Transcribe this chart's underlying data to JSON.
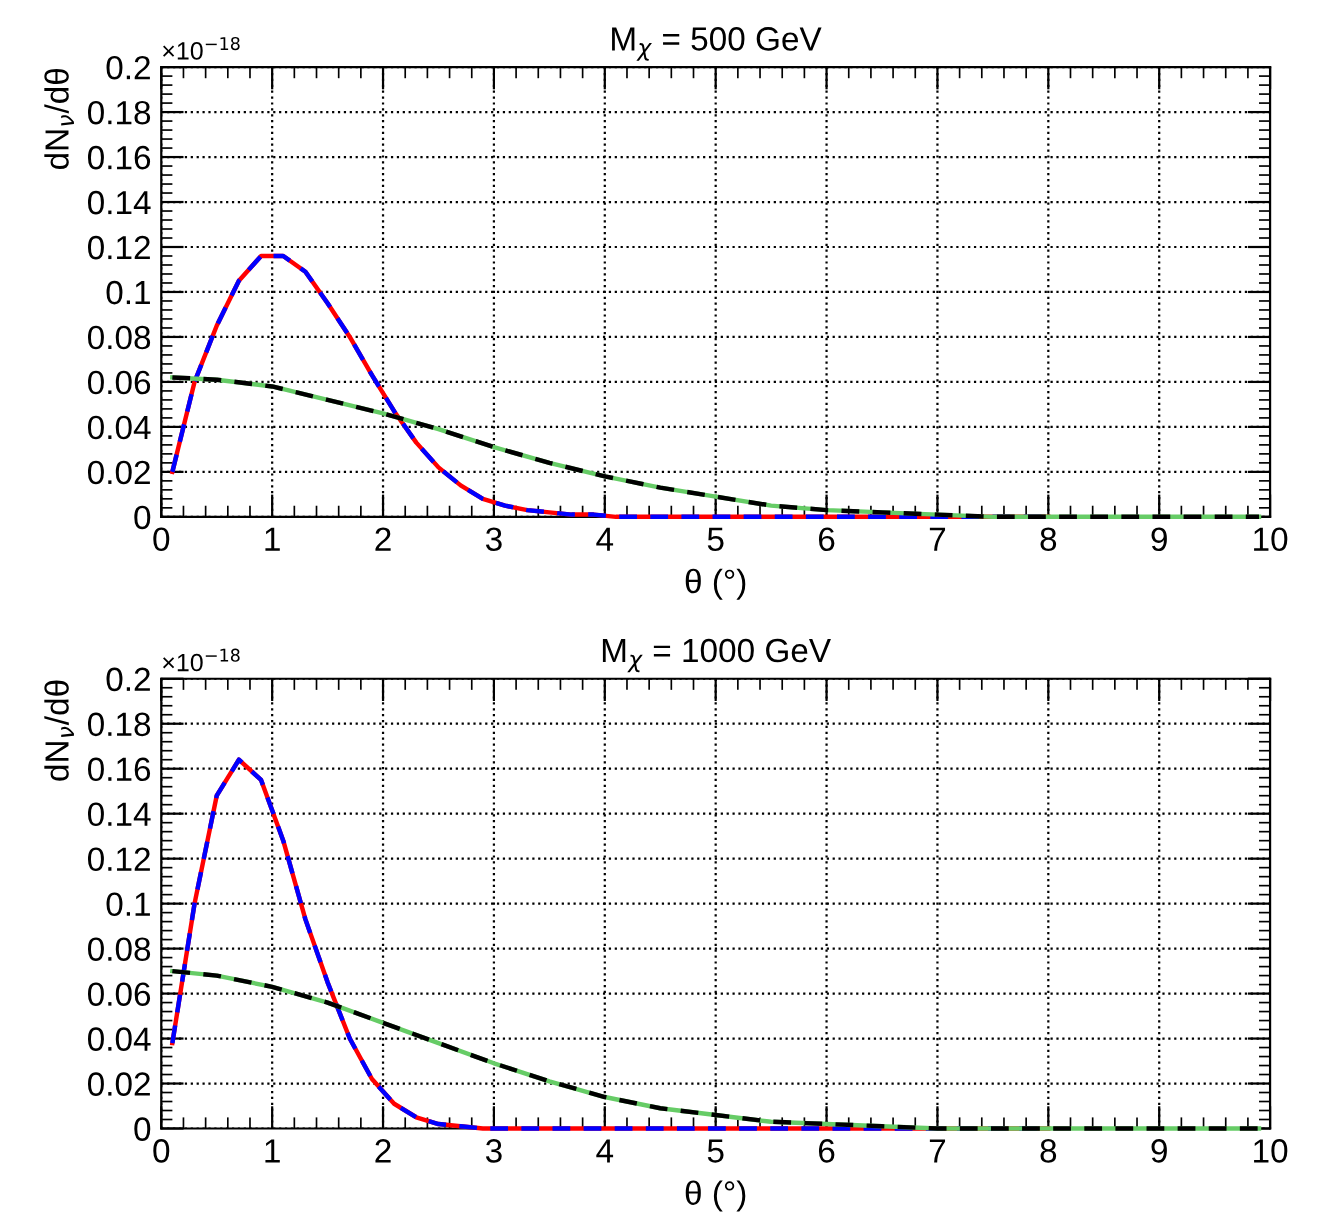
{
  "chart_data": [
    {
      "type": "line",
      "title": "M$_{χ}$ = 500 GeV",
      "xlabel": "θ (°)",
      "ylabel": "dN$_{ν}$/dθ",
      "annotations": [
        "×10$^{−18}$"
      ],
      "xlim": [
        0,
        10
      ],
      "ylim": [
        0,
        0.2
      ],
      "xticks": [
        0,
        1,
        2,
        3,
        4,
        5,
        6,
        7,
        8,
        9,
        10
      ],
      "yticks": [
        0,
        0.02,
        0.04,
        0.06,
        0.08,
        0.1,
        0.12,
        0.14,
        0.16,
        0.18,
        0.2
      ],
      "grid": true,
      "series": [
        {
          "color": "#ff0000",
          "line_style": "solid",
          "x": [
            0.1,
            0.3,
            0.5,
            0.7,
            0.9,
            1.1,
            1.3,
            1.5,
            1.7,
            1.9,
            2.1,
            2.3,
            2.5,
            2.7,
            2.9,
            3.1,
            3.3,
            3.5,
            3.7,
            3.9,
            4.1,
            5,
            6,
            7,
            8
          ],
          "values": [
            0.02,
            0.06,
            0.085,
            0.105,
            0.116,
            0.116,
            0.109,
            0.095,
            0.08,
            0.063,
            0.047,
            0.033,
            0.022,
            0.014,
            0.008,
            0.005,
            0.003,
            0.002,
            0.001,
            0.001,
            0,
            0,
            0,
            0,
            0
          ]
        },
        {
          "color": "#0000ff",
          "line_style": "dashed",
          "x": [
            0.1,
            0.3,
            0.5,
            0.7,
            0.9,
            1.1,
            1.3,
            1.5,
            1.7,
            1.9,
            2.1,
            2.3,
            2.5,
            2.7,
            2.9,
            3.1,
            3.3,
            3.5,
            3.7,
            3.9,
            4.1,
            5,
            6,
            7,
            8
          ],
          "values": [
            0.02,
            0.06,
            0.085,
            0.105,
            0.116,
            0.116,
            0.109,
            0.095,
            0.08,
            0.063,
            0.047,
            0.033,
            0.022,
            0.014,
            0.008,
            0.005,
            0.003,
            0.002,
            0.001,
            0.001,
            0,
            0,
            0,
            0,
            0
          ]
        },
        {
          "color": "#66cc66",
          "line_style": "solid",
          "x": [
            0.1,
            0.5,
            1,
            1.5,
            2,
            2.5,
            3,
            3.5,
            4,
            4.5,
            5,
            5.5,
            6,
            6.5,
            7,
            7.5,
            8,
            9,
            9.9
          ],
          "values": [
            0.062,
            0.061,
            0.058,
            0.052,
            0.046,
            0.039,
            0.031,
            0.024,
            0.018,
            0.013,
            0.009,
            0.005,
            0.003,
            0.002,
            0.001,
            0,
            0,
            0,
            0
          ]
        },
        {
          "color": "#000000",
          "line_style": "dashed",
          "x": [
            0.1,
            0.5,
            1,
            1.5,
            2,
            2.5,
            3,
            3.5,
            4,
            4.5,
            5,
            5.5,
            6,
            6.5,
            7,
            7.5,
            8,
            9,
            9.9
          ],
          "values": [
            0.062,
            0.061,
            0.058,
            0.052,
            0.046,
            0.039,
            0.031,
            0.024,
            0.018,
            0.013,
            0.009,
            0.005,
            0.003,
            0.002,
            0.001,
            0,
            0,
            0,
            0
          ]
        }
      ]
    },
    {
      "type": "line",
      "title": "M$_{χ}$ = 1000 GeV",
      "xlabel": "θ (°)",
      "ylabel": "dN$_{ν}$/dθ",
      "annotations": [
        "×10$^{−18}$"
      ],
      "xlim": [
        0,
        10
      ],
      "ylim": [
        0,
        0.2
      ],
      "xticks": [
        0,
        1,
        2,
        3,
        4,
        5,
        6,
        7,
        8,
        9,
        10
      ],
      "yticks": [
        0,
        0.02,
        0.04,
        0.06,
        0.08,
        0.1,
        0.12,
        0.14,
        0.16,
        0.18,
        0.2
      ],
      "grid": true,
      "series": [
        {
          "color": "#ff0000",
          "line_style": "solid",
          "x": [
            0.1,
            0.3,
            0.5,
            0.7,
            0.9,
            1.1,
            1.3,
            1.5,
            1.7,
            1.9,
            2.1,
            2.3,
            2.5,
            2.7,
            2.9,
            4,
            5,
            6,
            7,
            8
          ],
          "values": [
            0.038,
            0.1,
            0.148,
            0.164,
            0.155,
            0.128,
            0.093,
            0.065,
            0.04,
            0.022,
            0.011,
            0.005,
            0.002,
            0.001,
            0,
            0,
            0,
            0,
            0,
            0
          ]
        },
        {
          "color": "#0000ff",
          "line_style": "dashed",
          "x": [
            0.1,
            0.3,
            0.5,
            0.7,
            0.9,
            1.1,
            1.3,
            1.5,
            1.7,
            1.9,
            2.1,
            2.3,
            2.5,
            2.7,
            2.9,
            4,
            5,
            6,
            7,
            8
          ],
          "values": [
            0.038,
            0.1,
            0.148,
            0.164,
            0.155,
            0.128,
            0.093,
            0.065,
            0.04,
            0.022,
            0.011,
            0.005,
            0.002,
            0.001,
            0,
            0,
            0,
            0,
            0,
            0
          ]
        },
        {
          "color": "#66cc66",
          "line_style": "solid",
          "x": [
            0.1,
            0.5,
            1,
            1.5,
            2,
            2.5,
            3,
            3.5,
            4,
            4.5,
            5,
            5.5,
            6,
            6.5,
            7,
            8,
            9,
            9.9
          ],
          "values": [
            0.07,
            0.068,
            0.063,
            0.056,
            0.047,
            0.038,
            0.029,
            0.021,
            0.014,
            0.009,
            0.006,
            0.003,
            0.002,
            0.001,
            0,
            0,
            0,
            0
          ]
        },
        {
          "color": "#000000",
          "line_style": "dashed",
          "x": [
            0.1,
            0.5,
            1,
            1.5,
            2,
            2.5,
            3,
            3.5,
            4,
            4.5,
            5,
            5.5,
            6,
            6.5,
            7,
            8,
            9,
            9.9
          ],
          "values": [
            0.07,
            0.068,
            0.063,
            0.056,
            0.047,
            0.038,
            0.029,
            0.021,
            0.014,
            0.009,
            0.006,
            0.003,
            0.002,
            0.001,
            0,
            0,
            0,
            0
          ]
        }
      ]
    }
  ]
}
